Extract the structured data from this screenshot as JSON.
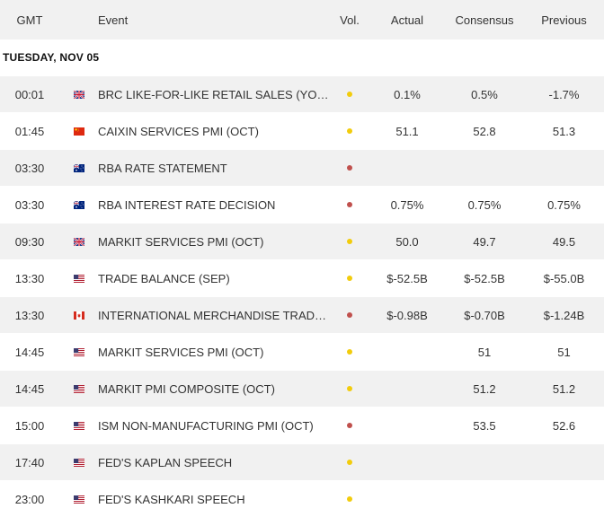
{
  "columns": {
    "gmt": "GMT",
    "event": "Event",
    "vol": "Vol.",
    "actual": "Actual",
    "consensus": "Consensus",
    "previous": "Previous"
  },
  "date_label": "TUESDAY, NOV 05",
  "colors": {
    "vol_low": "#f2cc0c",
    "vol_high": "#c0504d"
  },
  "rows": [
    {
      "time": "00:01",
      "country": "uk",
      "event": "BRC LIKE-FOR-LIKE RETAIL SALES (YOY) ...",
      "vol": "low",
      "actual": "0.1%",
      "consensus": "0.5%",
      "previous": "-1.7%"
    },
    {
      "time": "01:45",
      "country": "china",
      "event": "CAIXIN SERVICES PMI (OCT)",
      "vol": "low",
      "actual": "51.1",
      "consensus": "52.8",
      "previous": "51.3"
    },
    {
      "time": "03:30",
      "country": "australia",
      "event": "RBA RATE STATEMENT",
      "vol": "high",
      "actual": "",
      "consensus": "",
      "previous": ""
    },
    {
      "time": "03:30",
      "country": "australia",
      "event": "RBA INTEREST RATE DECISION",
      "vol": "high",
      "actual": "0.75%",
      "consensus": "0.75%",
      "previous": "0.75%"
    },
    {
      "time": "09:30",
      "country": "uk",
      "event": "MARKIT SERVICES PMI (OCT)",
      "vol": "low",
      "actual": "50.0",
      "consensus": "49.7",
      "previous": "49.5"
    },
    {
      "time": "13:30",
      "country": "usa",
      "event": "TRADE BALANCE (SEP)",
      "vol": "low",
      "actual": "$-52.5B",
      "consensus": "$-52.5B",
      "previous": "$-55.0B"
    },
    {
      "time": "13:30",
      "country": "canada",
      "event": "INTERNATIONAL MERCHANDISE TRADE (...",
      "vol": "high",
      "actual": "$-0.98B",
      "consensus": "$-0.70B",
      "previous": "$-1.24B"
    },
    {
      "time": "14:45",
      "country": "usa",
      "event": "MARKIT SERVICES PMI (OCT)",
      "vol": "low",
      "actual": "",
      "consensus": "51",
      "previous": "51"
    },
    {
      "time": "14:45",
      "country": "usa",
      "event": "MARKIT PMI COMPOSITE (OCT)",
      "vol": "low",
      "actual": "",
      "consensus": "51.2",
      "previous": "51.2"
    },
    {
      "time": "15:00",
      "country": "usa",
      "event": "ISM NON-MANUFACTURING PMI (OCT)",
      "vol": "high",
      "actual": "",
      "consensus": "53.5",
      "previous": "52.6"
    },
    {
      "time": "17:40",
      "country": "usa",
      "event": "FED'S KAPLAN SPEECH",
      "vol": "low",
      "actual": "",
      "consensus": "",
      "previous": ""
    },
    {
      "time": "23:00",
      "country": "usa",
      "event": "FED'S KASHKARI SPEECH",
      "vol": "low",
      "actual": "",
      "consensus": "",
      "previous": ""
    }
  ]
}
